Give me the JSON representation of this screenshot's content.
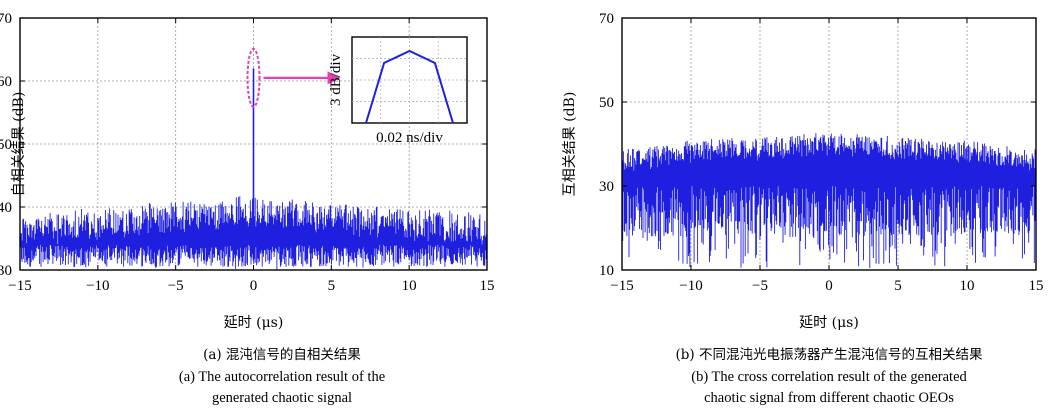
{
  "chart_data": [
    {
      "type": "line",
      "xlabel": "延时 (μs)",
      "ylabel": "自相关结果 (dB)",
      "xlim": [
        -15,
        15
      ],
      "ylim": [
        30,
        70
      ],
      "xticks": [
        "−15",
        "−10",
        "−5",
        "0",
        "5",
        "10",
        "15"
      ],
      "yticks": [
        "30",
        "40",
        "50",
        "60",
        "70"
      ],
      "grid": true,
      "series": [
        {
          "color": "#1f1fe0",
          "x": [
            -15,
            -10,
            -5,
            0,
            5,
            10,
            15
          ],
          "y_upper": [
            38,
            39,
            40,
            41,
            40,
            39,
            38
          ],
          "y_lower": [
            30,
            30,
            30,
            30,
            30,
            30,
            30
          ],
          "peak": {
            "x": 0,
            "y": 62
          }
        }
      ],
      "inset": {
        "xlabel": "0.02 ns/div",
        "ylabel": "3 dB/div",
        "color": "#1f1fe0",
        "points": [
          [
            0,
            0
          ],
          [
            0.5,
            3
          ],
          [
            1.2,
            3.6
          ],
          [
            1.9,
            3
          ],
          [
            2.4,
            0
          ]
        ]
      },
      "annotation_color": "#e63fb6",
      "caption_cn": "(a) 混沌信号的自相关结果",
      "caption_en": [
        "(a) The autocorrelation result of the",
        "generated chaotic signal"
      ]
    },
    {
      "type": "line",
      "xlabel": "延时 (μs)",
      "ylabel": "互相关结果 (dB)",
      "xlim": [
        -15,
        15
      ],
      "ylim": [
        10,
        70
      ],
      "xticks": [
        "−15",
        "−10",
        "−5",
        "0",
        "5",
        "10",
        "15"
      ],
      "yticks": [
        "10",
        "30",
        "50",
        "70"
      ],
      "grid": true,
      "series": [
        {
          "color": "#1f1fe0",
          "x": [
            -15,
            -10,
            -5,
            0,
            5,
            10,
            15
          ],
          "y_upper": [
            38,
            40,
            41,
            42,
            41,
            40,
            38
          ],
          "y_lower": [
            10,
            10,
            10,
            10,
            10,
            10,
            10
          ]
        }
      ],
      "caption_cn": "(b) 不同混沌光电振荡器产生混沌信号的互相关结果",
      "caption_en": [
        "(b) The cross correlation result of the generated",
        "chaotic signal from different chaotic OEOs"
      ]
    }
  ]
}
